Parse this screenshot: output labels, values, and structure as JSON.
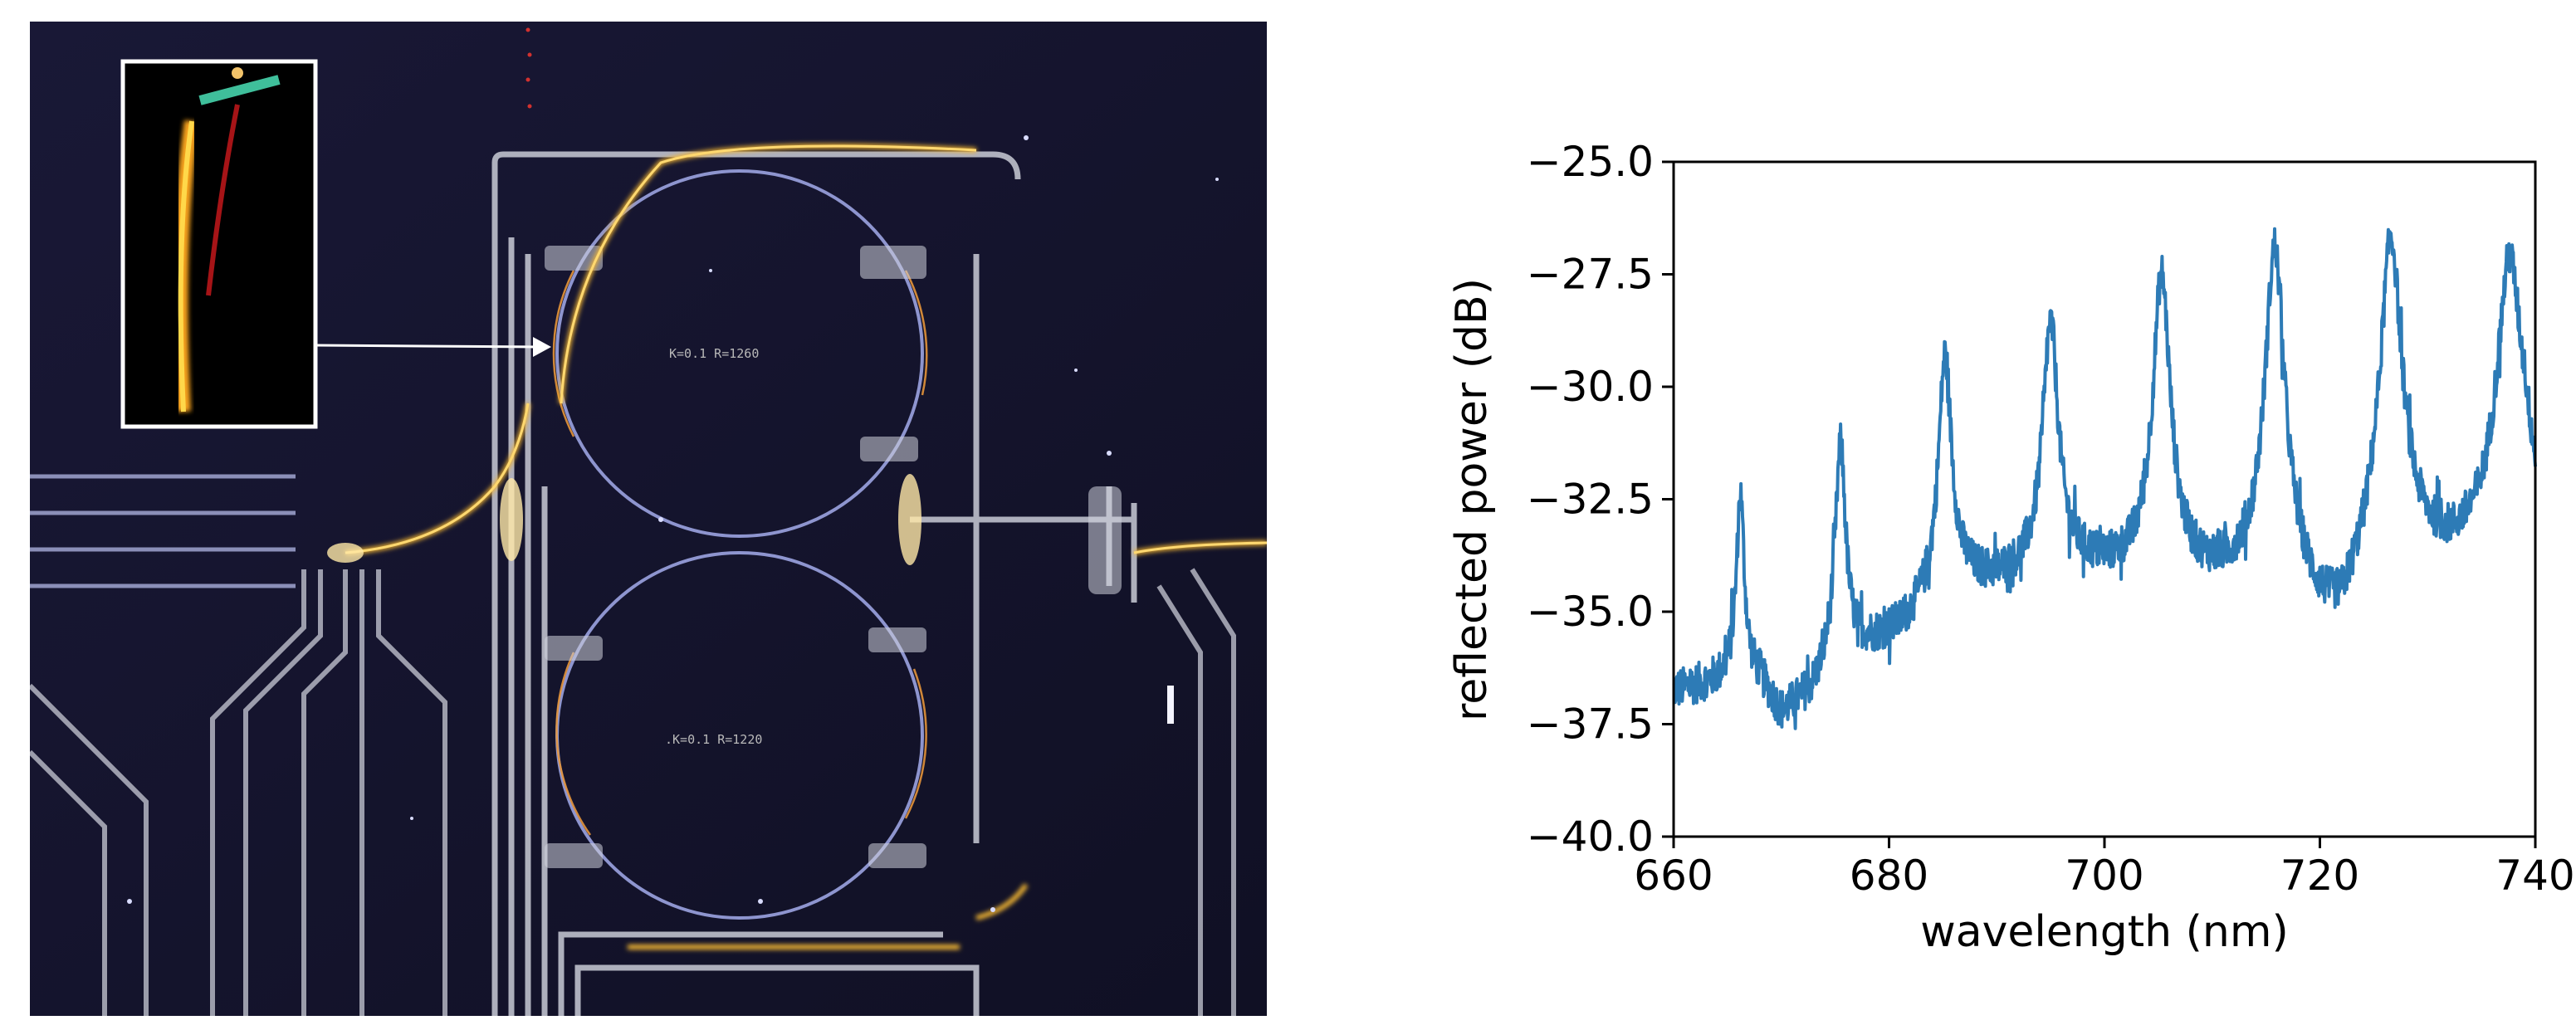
{
  "figure": {
    "microscope_image": {
      "chip_labels": [
        "K=0.1 R=1260",
        ".K=0.1 R=1220"
      ],
      "colors": {
        "background": "#14132e",
        "waveguide": "#c9cbd6",
        "ring": "#8e95cf",
        "scatter_light": "#f2b531",
        "inset_frame": "#ffffff"
      }
    }
  },
  "chart_data": {
    "type": "line",
    "xlabel": "wavelength (nm)",
    "ylabel": "reflected power (dB)",
    "xlim": [
      660,
      740
    ],
    "ylim": [
      -40,
      -25
    ],
    "xticks": [
      660,
      680,
      700,
      720,
      740
    ],
    "xtick_labels": [
      "660",
      "680",
      "700",
      "720",
      "740"
    ],
    "yticks": [
      -40,
      -37.5,
      -35,
      -32.5,
      -30,
      -27.5,
      -25
    ],
    "ytick_labels": [
      "−40.0",
      "−37.5",
      "−35.0",
      "−32.5",
      "−30.0",
      "−27.5",
      "−25.0"
    ],
    "grid": false,
    "color": "#2d7bb6",
    "baseline": [
      [
        660,
        -36.8
      ],
      [
        664,
        -36.6
      ],
      [
        666,
        -36.4
      ],
      [
        668,
        -36.6
      ],
      [
        670,
        -37.4
      ],
      [
        673,
        -36.9
      ],
      [
        675,
        -36.1
      ],
      [
        678,
        -35.8
      ],
      [
        681,
        -35.5
      ],
      [
        684,
        -34.9
      ],
      [
        686,
        -34.4
      ],
      [
        690,
        -34.4
      ],
      [
        694,
        -34.2
      ],
      [
        698,
        -34.1
      ],
      [
        702,
        -34.2
      ],
      [
        706,
        -34.3
      ],
      [
        710,
        -34.4
      ],
      [
        713,
        -34.4
      ],
      [
        717,
        -34.6
      ],
      [
        720,
        -35.5
      ],
      [
        722,
        -35.7
      ],
      [
        725,
        -34.3
      ],
      [
        728,
        -33.8
      ],
      [
        732,
        -33.9
      ],
      [
        735,
        -33.6
      ],
      [
        737,
        -33.0
      ],
      [
        739,
        -32.0
      ],
      [
        740,
        -33.2
      ]
    ],
    "peaks": [
      {
        "x": 666.2,
        "y": -32.4,
        "width": 0.35
      },
      {
        "x": 675.5,
        "y": -31.3,
        "width": 0.45
      },
      {
        "x": 685.2,
        "y": -29.3,
        "width": 0.55
      },
      {
        "x": 695.0,
        "y": -28.6,
        "width": 0.65
      },
      {
        "x": 705.3,
        "y": -27.5,
        "width": 0.7
      },
      {
        "x": 715.8,
        "y": -26.9,
        "width": 0.75
      },
      {
        "x": 726.6,
        "y": -26.7,
        "width": 0.85
      },
      {
        "x": 737.6,
        "y": -27.1,
        "width": 1.0
      }
    ],
    "noise_amplitude_db": 0.45
  }
}
